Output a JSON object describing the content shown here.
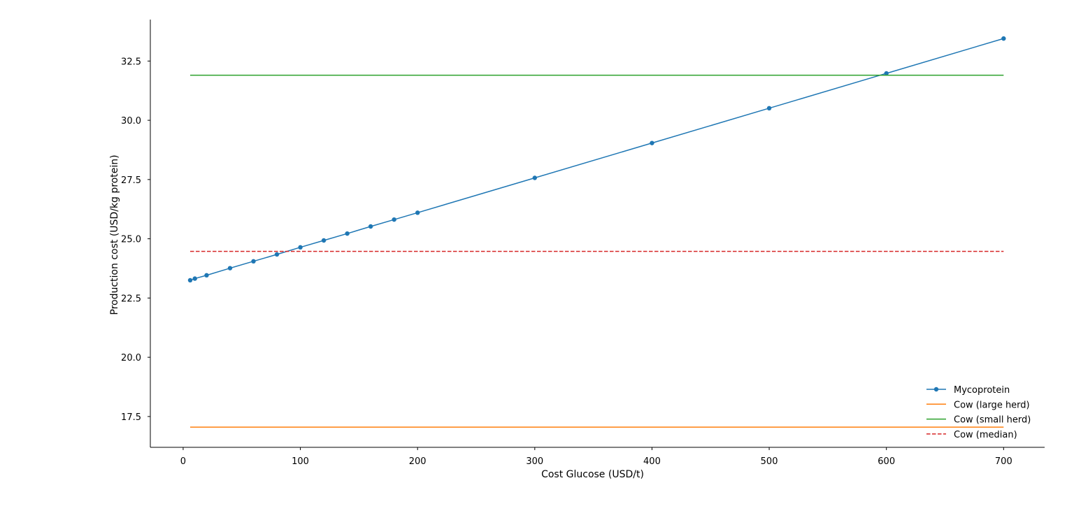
{
  "chart_data": {
    "type": "line",
    "title": "",
    "xlabel": "Cost Glucose (USD/t)",
    "ylabel": "Production cost (USD/kg protein)",
    "xlim": [
      -28,
      735
    ],
    "ylim": [
      16.2,
      34.25
    ],
    "xticks": [
      0,
      100,
      200,
      300,
      400,
      500,
      600,
      700
    ],
    "xtick_labels": [
      "0",
      "100",
      "200",
      "300",
      "400",
      "500",
      "600",
      "700"
    ],
    "yticks": [
      17.5,
      20.0,
      22.5,
      25.0,
      27.5,
      30.0,
      32.5
    ],
    "ytick_labels": [
      "17.5",
      "20.0",
      "22.5",
      "25.0",
      "27.5",
      "30.0",
      "32.5"
    ],
    "grid": false,
    "legend_position": "lower-right",
    "series": [
      {
        "name": "Mycoprotein",
        "color": "#1f77b4",
        "style": "solid",
        "markers": true,
        "x": [
          6,
          10,
          20,
          40,
          60,
          80,
          100,
          120,
          140,
          160,
          180,
          200,
          300,
          400,
          500,
          600,
          700
        ],
        "y": [
          23.25,
          23.32,
          23.46,
          23.76,
          24.05,
          24.34,
          24.64,
          24.93,
          25.22,
          25.52,
          25.81,
          26.1,
          27.57,
          29.04,
          30.51,
          31.98,
          33.45
        ]
      },
      {
        "name": "Cow (large herd)",
        "color": "#ff7f0e",
        "style": "solid",
        "markers": false,
        "x": [
          6,
          700
        ],
        "y": [
          17.05,
          17.05
        ]
      },
      {
        "name": "Cow (small herd)",
        "color": "#2ca02c",
        "style": "solid",
        "markers": false,
        "x": [
          6,
          700
        ],
        "y": [
          31.9,
          31.9
        ]
      },
      {
        "name": "Cow (median)",
        "color": "#d62728",
        "style": "dashed",
        "markers": false,
        "x": [
          6,
          700
        ],
        "y": [
          24.47,
          24.47
        ]
      }
    ]
  }
}
